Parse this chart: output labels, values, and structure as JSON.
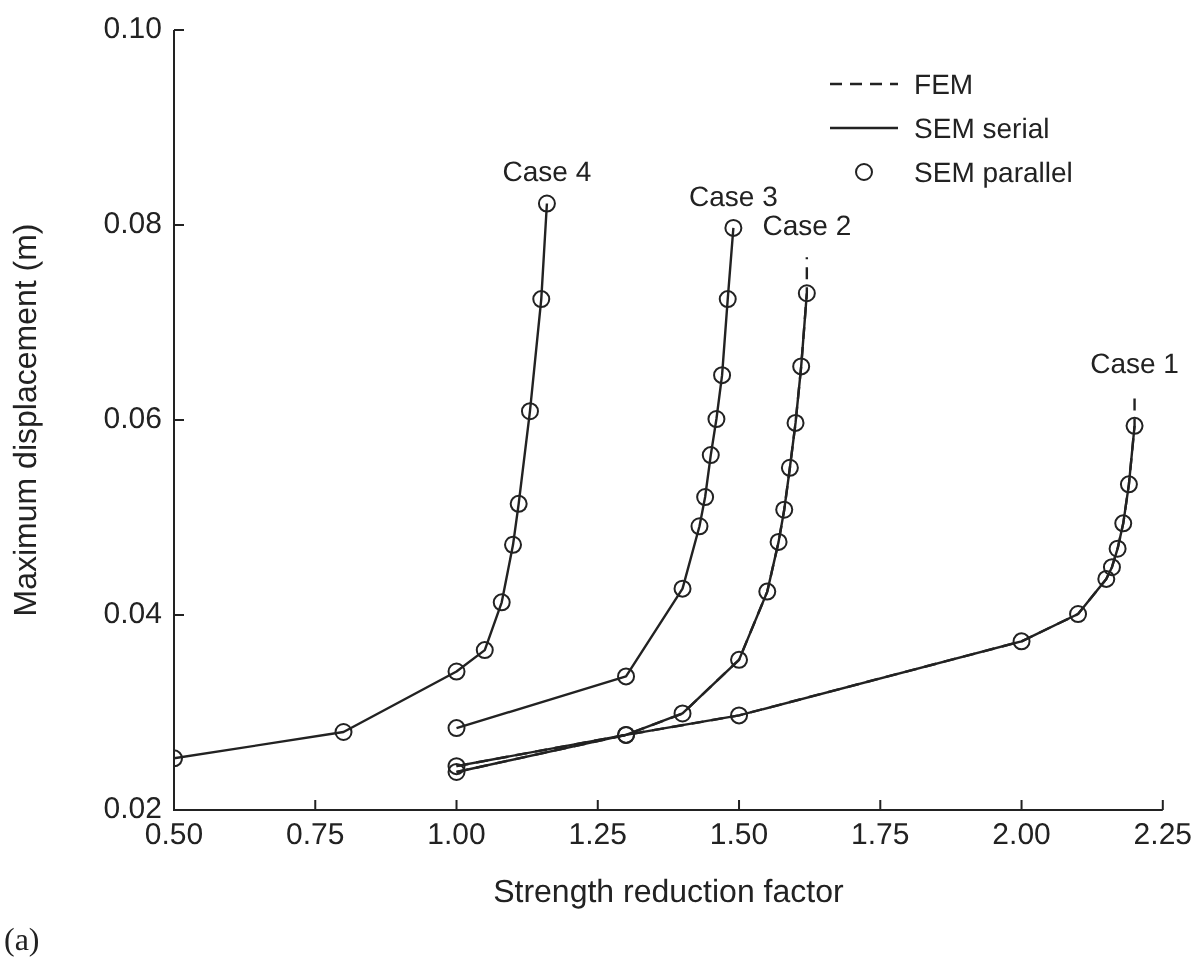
{
  "chart_data": {
    "type": "line",
    "xlabel": "Strength reduction factor",
    "ylabel": "Maximum displacement (m)",
    "xlim": [
      0.5,
      2.25
    ],
    "xticks": [
      {
        "value": 0.5,
        "label": "0.50"
      },
      0.75,
      {
        "value": 1,
        "label": "1.00"
      },
      1.25,
      {
        "value": 1.5,
        "label": "1.50"
      },
      1.75,
      {
        "value": 2,
        "label": "2.00"
      },
      2.25
    ],
    "ylim": [
      0.02,
      0.1
    ],
    "yticks": [
      0.02,
      0.04,
      0.06,
      0.08,
      {
        "value": 0.1,
        "label": "0.10"
      }
    ],
    "grid": false,
    "legend": "top right",
    "series": [
      {
        "name": "FEM",
        "line_style": "dashed",
        "marker": "none",
        "color": "#222222",
        "x": [
          1.0,
          1.3,
          1.5,
          2.0,
          2.1,
          2.15,
          2.16,
          2.17,
          2.18,
          2.19,
          2.2,
          2.2
        ],
        "values": [
          0.0239,
          0.0277,
          0.0297,
          0.0373,
          0.0401,
          0.0437,
          0.0449,
          0.0468,
          0.0494,
          0.0534,
          0.0594,
          0.0625
        ]
      },
      {
        "name": "SEM serial",
        "line_style": "solid",
        "marker": "none",
        "color": "#222222",
        "x": [
          1.0,
          1.3,
          1.5,
          2.0,
          2.1,
          2.15,
          2.16,
          2.17,
          2.18,
          2.19,
          2.2
        ],
        "values": [
          0.0239,
          0.0277,
          0.0297,
          0.0373,
          0.0401,
          0.0437,
          0.0449,
          0.0468,
          0.0494,
          0.0534,
          0.0594
        ]
      },
      {
        "name": "SEM parallel",
        "type": "scatter",
        "marker": "circle",
        "color": "#222222",
        "x": [
          1.0,
          1.3,
          1.5,
          2.0,
          2.1,
          2.15,
          2.16,
          2.17,
          2.18,
          2.19,
          2.2
        ],
        "values": [
          0.0239,
          0.0277,
          0.0297,
          0.0373,
          0.0401,
          0.0437,
          0.0449,
          0.0468,
          0.0494,
          0.0534,
          0.0594
        ]
      },
      {
        "line_style": "dashed",
        "marker": "none",
        "color": "#222222",
        "x": [
          1.0,
          1.3,
          1.4,
          1.5,
          1.55,
          1.57,
          1.58,
          1.59,
          1.6,
          1.61,
          1.62,
          1.62
        ],
        "values": [
          0.0245,
          0.0277,
          0.0299,
          0.0354,
          0.0424,
          0.0475,
          0.0508,
          0.0551,
          0.0597,
          0.0655,
          0.073,
          0.0767
        ]
      },
      {
        "line_style": "solid",
        "marker": "none",
        "color": "#222222",
        "x": [
          1.0,
          1.3,
          1.4,
          1.5,
          1.55,
          1.57,
          1.58,
          1.59,
          1.6,
          1.61,
          1.62
        ],
        "values": [
          0.0245,
          0.0277,
          0.0299,
          0.0354,
          0.0424,
          0.0475,
          0.0508,
          0.0551,
          0.0597,
          0.0655,
          0.073
        ]
      },
      {
        "type": "scatter",
        "marker": "circle",
        "color": "#222222",
        "x": [
          1.0,
          1.3,
          1.4,
          1.5,
          1.55,
          1.57,
          1.58,
          1.59,
          1.6,
          1.61,
          1.62
        ],
        "values": [
          0.0245,
          0.0277,
          0.0299,
          0.0354,
          0.0424,
          0.0475,
          0.0508,
          0.0551,
          0.0597,
          0.0655,
          0.073
        ]
      },
      {
        "line_style": "solid",
        "marker": "none",
        "color": "#222222",
        "x": [
          1.0,
          1.3,
          1.4,
          1.43,
          1.44,
          1.45,
          1.46,
          1.47,
          1.48,
          1.49
        ],
        "values": [
          0.0284,
          0.0337,
          0.0427,
          0.0491,
          0.0521,
          0.0564,
          0.0601,
          0.0646,
          0.0724,
          0.0797
        ]
      },
      {
        "type": "scatter",
        "marker": "circle",
        "color": "#222222",
        "x": [
          1.0,
          1.3,
          1.4,
          1.43,
          1.44,
          1.45,
          1.46,
          1.47,
          1.48,
          1.49
        ],
        "values": [
          0.0284,
          0.0337,
          0.0427,
          0.0491,
          0.0521,
          0.0564,
          0.0601,
          0.0646,
          0.0724,
          0.0797
        ]
      },
      {
        "line_style": "solid",
        "marker": "none",
        "color": "#222222",
        "x": [
          0.5,
          0.8,
          1.0,
          1.05,
          1.08,
          1.1,
          1.11,
          1.13,
          1.15,
          1.16
        ],
        "values": [
          0.0253,
          0.028,
          0.0342,
          0.0364,
          0.0413,
          0.0472,
          0.0514,
          0.0609,
          0.0724,
          0.0822
        ]
      },
      {
        "type": "scatter",
        "marker": "circle",
        "color": "#222222",
        "x": [
          0.5,
          0.8,
          1.0,
          1.05,
          1.08,
          1.1,
          1.11,
          1.13,
          1.15,
          1.16
        ],
        "values": [
          0.0253,
          0.028,
          0.0342,
          0.0364,
          0.0413,
          0.0472,
          0.0514,
          0.0609,
          0.0724,
          0.0822
        ]
      }
    ],
    "annotations": [
      {
        "text": "Case 1",
        "x": 2.2,
        "y": 0.0625
      },
      {
        "text": "Case 2",
        "x": 1.62,
        "y": 0.0767
      },
      {
        "text": "Case 3",
        "x": 1.49,
        "y": 0.0797
      },
      {
        "text": "Case 4",
        "x": 1.16,
        "y": 0.0822
      },
      "(a)"
    ]
  }
}
